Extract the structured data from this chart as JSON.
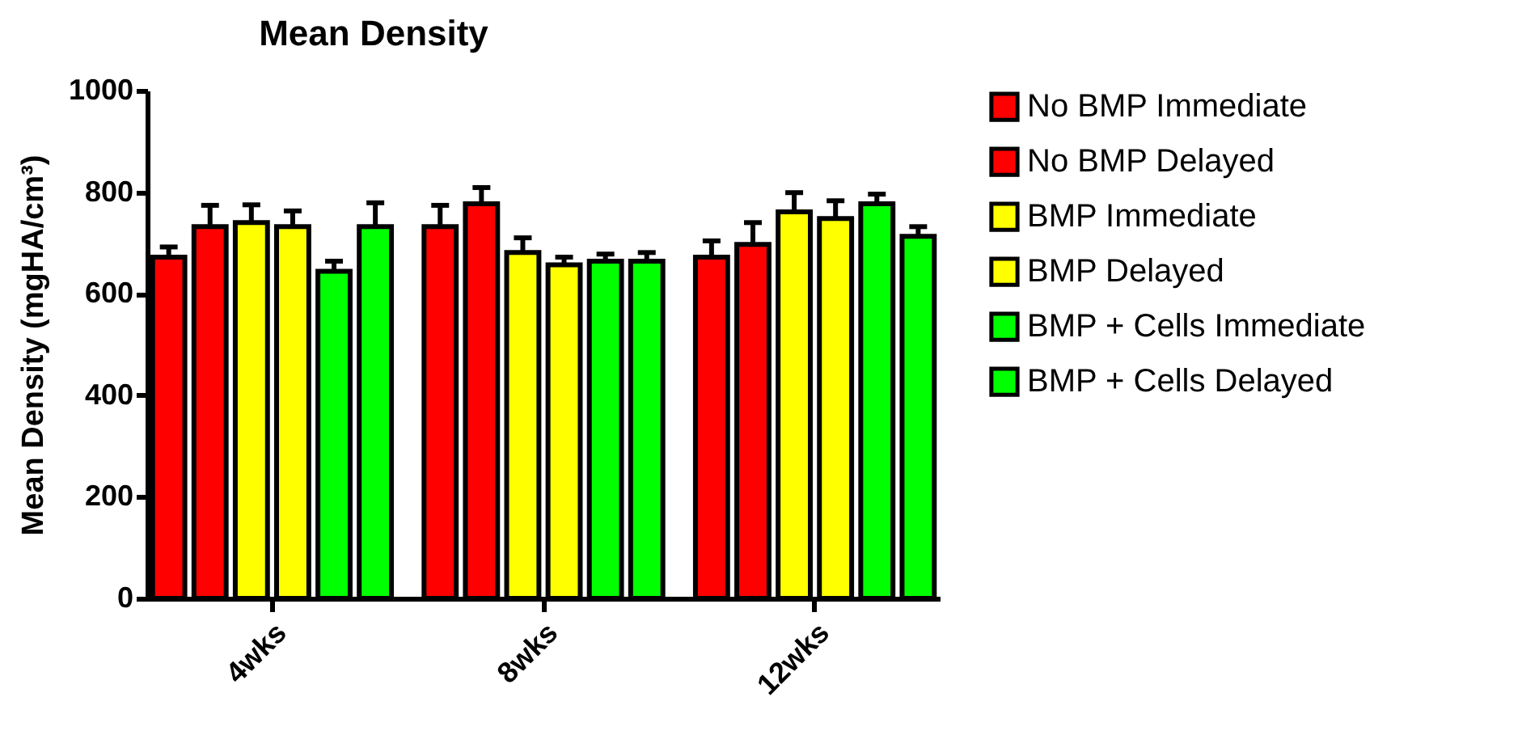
{
  "chart_data": {
    "type": "bar",
    "title": "Mean Density",
    "ylabel": "Mean Density (mgHA/cm³)",
    "categories": [
      "4wks",
      "8wks",
      "12wks"
    ],
    "ylim": [
      0,
      1000
    ],
    "yticks": [
      0,
      200,
      400,
      600,
      800,
      1000
    ],
    "grid": false,
    "legend": "right",
    "series": [
      {
        "name": "No BMP Immediate",
        "color": "#ff0000",
        "values": [
          672,
          732,
          672
        ],
        "errors": [
          [
            672,
            692
          ],
          [
            732,
            774
          ],
          [
            672,
            704
          ]
        ]
      },
      {
        "name": "No BMP Delayed",
        "color": "#ff0000",
        "values": [
          732,
          777,
          697
        ],
        "errors": [
          [
            732,
            774
          ],
          [
            777,
            809
          ],
          [
            697,
            740
          ]
        ]
      },
      {
        "name": "BMP Immediate",
        "color": "#ffff00",
        "values": [
          740,
          681,
          761
        ],
        "errors": [
          [
            740,
            775
          ],
          [
            681,
            710
          ],
          [
            761,
            799
          ]
        ]
      },
      {
        "name": "BMP Delayed",
        "color": "#ffff00",
        "values": [
          732,
          657,
          748
        ],
        "errors": [
          [
            732,
            763
          ],
          [
            657,
            672
          ],
          [
            748,
            783
          ]
        ]
      },
      {
        "name": "BMP + Cells Immediate",
        "color": "#00ff00",
        "values": [
          644,
          664,
          777
        ],
        "errors": [
          [
            644,
            664
          ],
          [
            664,
            678
          ],
          [
            777,
            796
          ]
        ]
      },
      {
        "name": "BMP + Cells Delayed",
        "color": "#00ff00",
        "values": [
          732,
          664,
          713
        ],
        "errors": [
          [
            732,
            779
          ],
          [
            664,
            681
          ],
          [
            713,
            732
          ]
        ]
      }
    ]
  }
}
